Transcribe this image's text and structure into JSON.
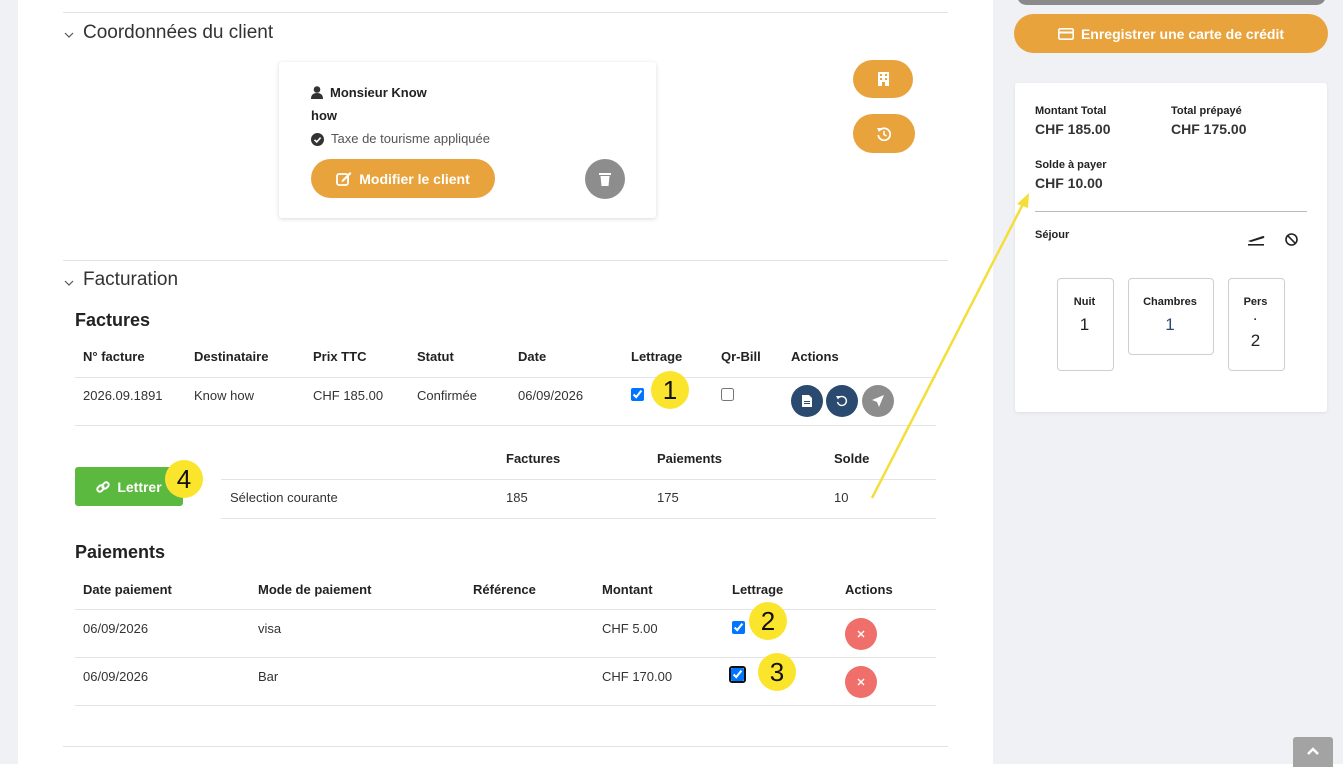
{
  "sections": {
    "client": "Coordonnées du client",
    "billing": "Facturation"
  },
  "client": {
    "name": "Monsieur  Know",
    "line2": "how",
    "tax": "Taxe de tourisme appliquée",
    "edit_button": "Modifier le client"
  },
  "invoices": {
    "title": "Factures",
    "columns": [
      "N° facture",
      "Destinataire",
      "Prix TTC",
      "Statut",
      "Date",
      "Lettrage",
      "Qr-Bill",
      "Actions"
    ],
    "rows": [
      [
        "2026.09.1891",
        "Know how",
        "CHF 185.00",
        "Confirmée",
        "06/09/2026"
      ]
    ]
  },
  "lettering": {
    "button": "Lettrer",
    "columns": [
      "Factures",
      "Paiements",
      "Solde"
    ],
    "row_label": "Sélection courante",
    "values": [
      185,
      175,
      10
    ]
  },
  "payments": {
    "title": "Paiements",
    "columns": [
      "Date paiement",
      "Mode de paiement",
      "Référence",
      "Montant",
      "Lettrage",
      "Actions"
    ],
    "rows": [
      [
        "06/09/2026",
        "visa",
        "CHF 5.00"
      ],
      [
        "06/09/2026",
        "Bar",
        "CHF 170.00"
      ]
    ]
  },
  "annotations": [
    1,
    2,
    3,
    4
  ],
  "sidebar": {
    "card_button": "Enregistrer une carte de crédit",
    "total_label": "Montant Total",
    "total": "CHF 185.00",
    "prepaid_label": "Total prépayé",
    "prepaid": "CHF 175.00",
    "balance_label": "Solde à payer",
    "balance": "CHF 10.00",
    "stay_label": "Séjour",
    "stats": [
      {
        "label": "Nuit",
        "value": 1
      },
      {
        "label": "Chambres",
        "value": 1
      },
      {
        "label": "Pers",
        "note": "·",
        "value": 2
      }
    ]
  }
}
